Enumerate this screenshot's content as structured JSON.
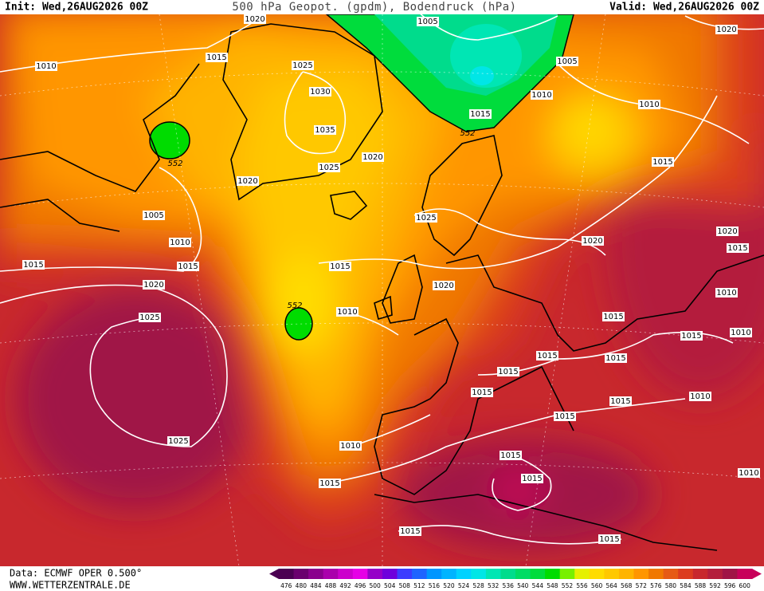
{
  "header": {
    "init": "Init: Wed,26AUG2026 00Z",
    "title": "500 hPa Geopot. (gpdm), Bodendruck (hPa)",
    "valid": "Valid: Wed,26AUG2026 00Z"
  },
  "footer": {
    "data": "Data: ECMWF OPER 0.500°",
    "site": "WWW.WETTERZENTRALE.DE"
  },
  "contours": {
    "labels": [
      1020,
      1015,
      1010,
      1025,
      1030,
      1035,
      1025,
      1020,
      1020,
      552,
      1005,
      1010,
      1015,
      1015,
      1020,
      1025,
      1025,
      1005,
      1005,
      1010,
      1015,
      552,
      1010,
      1020,
      1015,
      1025,
      1020,
      1020,
      1015,
      1015,
      1020,
      552,
      1010,
      1010,
      1015,
      1015,
      1010,
      1015,
      1015,
      1015,
      1015,
      1015,
      1010,
      1015,
      1010,
      1015,
      1015,
      1015,
      1010,
      1015,
      1015
    ]
  },
  "legend": {
    "ticks": [
      476,
      480,
      484,
      488,
      492,
      496,
      500,
      504,
      508,
      512,
      516,
      520,
      524,
      528,
      532,
      536,
      540,
      544,
      548,
      552,
      556,
      560,
      564,
      568,
      572,
      576,
      580,
      584,
      588,
      592,
      596,
      600
    ],
    "colors": [
      "#4b0052",
      "#6a006e",
      "#8a008d",
      "#aa00ac",
      "#cc00cc",
      "#e600e6",
      "#9600c8",
      "#6e00dc",
      "#3c3cff",
      "#1e64ff",
      "#0096ff",
      "#00b4ff",
      "#00d2ff",
      "#00e6e6",
      "#00e6b4",
      "#00dc8c",
      "#00dc64",
      "#00dc3c",
      "#00dc00",
      "#78f000",
      "#e6f000",
      "#ffdc00",
      "#ffc800",
      "#ffb400",
      "#ff9600",
      "#f07800",
      "#e65a14",
      "#dc3c1e",
      "#c8282d",
      "#b41e3c",
      "#a01446",
      "#c8005a"
    ]
  }
}
